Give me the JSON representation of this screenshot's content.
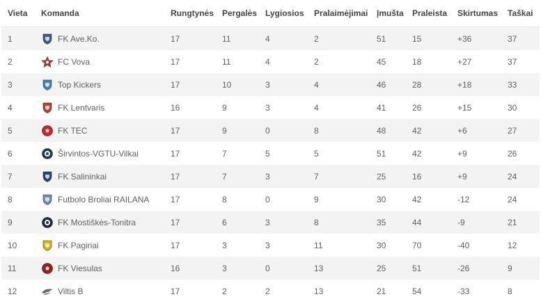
{
  "headers": {
    "position": "Vieta",
    "team": "Komanda",
    "played": "Rungtynės",
    "wins": "Pergalės",
    "draws": "Lygiosios",
    "losses": "Pralaimėjimai",
    "scored": "Įmušta",
    "conceded": "Praleista",
    "difference": "Skirtumas",
    "points": "Taškai"
  },
  "rows": [
    {
      "position": "1",
      "team": "FK Ave.Ko.",
      "logo": "shield-emblem-navy",
      "color": "#3a5a8c",
      "played": "17",
      "wins": "11",
      "draws": "4",
      "losses": "2",
      "scored": "51",
      "conceded": "15",
      "difference": "+36",
      "points": "37"
    },
    {
      "position": "2",
      "team": "FC Vova",
      "logo": "star-emblem-red",
      "color": "#cc2a2a",
      "played": "17",
      "wins": "11",
      "draws": "4",
      "losses": "2",
      "scored": "45",
      "conceded": "18",
      "difference": "+27",
      "points": "37"
    },
    {
      "position": "3",
      "team": "Top Kickers",
      "logo": "shield-emblem-blue",
      "color": "#3d7fc7",
      "played": "17",
      "wins": "10",
      "draws": "3",
      "losses": "4",
      "scored": "46",
      "conceded": "28",
      "difference": "+18",
      "points": "33"
    },
    {
      "position": "4",
      "team": "FK Lentvaris",
      "logo": "crest-emblem-red",
      "color": "#c0392b",
      "played": "16",
      "wins": "9",
      "draws": "3",
      "losses": "4",
      "scored": "41",
      "conceded": "26",
      "difference": "+15",
      "points": "30"
    },
    {
      "position": "5",
      "team": "FK TEC",
      "logo": "ball-emblem-red",
      "color": "#d42020",
      "played": "17",
      "wins": "9",
      "draws": "0",
      "losses": "8",
      "scored": "48",
      "conceded": "42",
      "difference": "+6",
      "points": "27"
    },
    {
      "position": "6",
      "team": "Širvintos-VGTU-Vilkai",
      "logo": "round-emblem-navy",
      "color": "#1f3a66",
      "played": "17",
      "wins": "7",
      "draws": "5",
      "losses": "5",
      "scored": "51",
      "conceded": "42",
      "difference": "+9",
      "points": "26"
    },
    {
      "position": "7",
      "team": "FK Salininkai",
      "logo": "shield-emblem-darkblue",
      "color": "#23407a",
      "played": "17",
      "wins": "7",
      "draws": "3",
      "losses": "7",
      "scored": "25",
      "conceded": "16",
      "difference": "+9",
      "points": "24"
    },
    {
      "position": "8",
      "team": "Futbolo Broliai RAILANA",
      "logo": "shield-emblem-lightblue",
      "color": "#6b8fc4",
      "played": "17",
      "wins": "8",
      "draws": "0",
      "losses": "9",
      "scored": "30",
      "conceded": "42",
      "difference": "-12",
      "points": "24"
    },
    {
      "position": "9",
      "team": "FK Mostiškės-Tonitra",
      "logo": "round-emblem-black",
      "color": "#1c2a44",
      "played": "17",
      "wins": "6",
      "draws": "3",
      "losses": "8",
      "scored": "35",
      "conceded": "44",
      "difference": "-9",
      "points": "21"
    },
    {
      "position": "10",
      "team": "FK Pagiriai",
      "logo": "shield-emblem-yellow-black",
      "color": "#e3b400",
      "played": "17",
      "wins": "3",
      "draws": "3",
      "losses": "11",
      "scored": "30",
      "conceded": "70",
      "difference": "-40",
      "points": "12"
    },
    {
      "position": "11",
      "team": "FK Viesulas",
      "logo": "ball-emblem-darkred",
      "color": "#9e1b1b",
      "played": "16",
      "wins": "3",
      "draws": "0",
      "losses": "13",
      "scored": "25",
      "conceded": "51",
      "difference": "-26",
      "points": "9"
    },
    {
      "position": "12",
      "team": "Viltis B",
      "logo": "wing-emblem-grey",
      "color": "#666666",
      "played": "17",
      "wins": "2",
      "draws": "2",
      "losses": "13",
      "scored": "21",
      "conceded": "54",
      "difference": "-33",
      "points": "8"
    }
  ]
}
